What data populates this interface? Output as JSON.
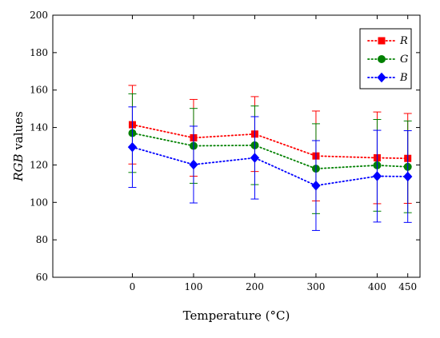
{
  "chart_data": {
    "type": "line",
    "title": "",
    "xlabel": "Temperature (°C)",
    "ylabel_italic": "RGB",
    "ylabel_rest": " values",
    "x": [
      0,
      100,
      200,
      300,
      400,
      450
    ],
    "x_tick_labels": [
      "0",
      "100",
      "200",
      "300",
      "400",
      "450"
    ],
    "xlim": [
      -130,
      470
    ],
    "ylim": [
      60,
      200
    ],
    "y_ticks": [
      60,
      80,
      100,
      120,
      140,
      160,
      180,
      200
    ],
    "grid": false,
    "legend_position": "top-right",
    "series": [
      {
        "name": "R",
        "color": "#ff0000",
        "marker": "square",
        "values": [
          141.5,
          134.5,
          136.5,
          124.8,
          123.8,
          123.5
        ],
        "error": [
          21,
          20.5,
          20,
          24,
          24.5,
          24
        ]
      },
      {
        "name": "G",
        "color": "#008000",
        "marker": "circle",
        "values": [
          137,
          130.2,
          130.5,
          118,
          119.8,
          119
        ],
        "error": [
          21,
          20,
          21,
          24,
          24.5,
          24.5
        ]
      },
      {
        "name": "B",
        "color": "#0000ff",
        "marker": "diamond",
        "values": [
          129.5,
          120.2,
          123.8,
          109,
          114,
          113.8
        ],
        "error": [
          21.5,
          20.5,
          22,
          24,
          24.5,
          24.5
        ]
      }
    ]
  }
}
